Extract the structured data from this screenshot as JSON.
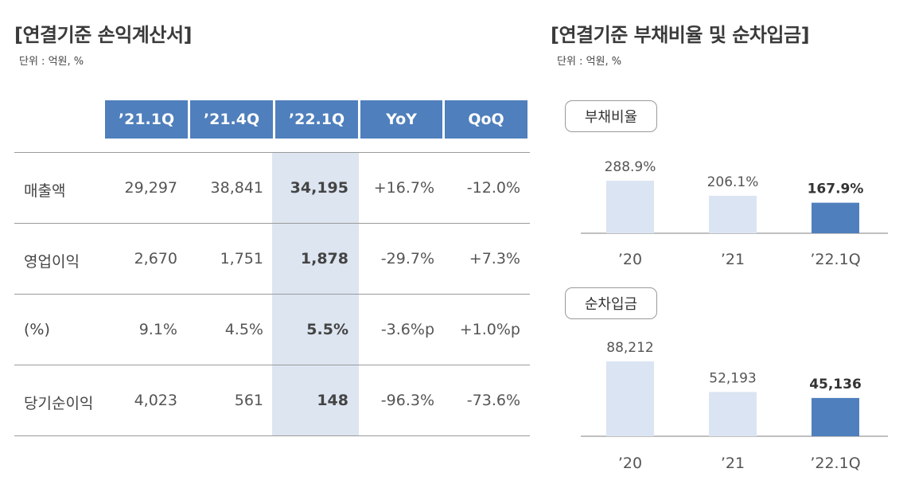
{
  "left": {
    "title": "[연결기준 손익계산서]",
    "unit": "단위 : 억원, %",
    "columns": [
      "’21.1Q",
      "’21.4Q",
      "’22.1Q",
      "YoY",
      "QoQ"
    ],
    "rows": [
      {
        "label": "매출액",
        "values": [
          "29,297",
          "38,841",
          "34,195",
          "+16.7%",
          "-12.0%"
        ]
      },
      {
        "label": "영업이익",
        "values": [
          "2,670",
          "1,751",
          "1,878",
          "-29.7%",
          "+7.3%"
        ]
      },
      {
        "label": "(%)",
        "values": [
          "9.1%",
          "4.5%",
          "5.5%",
          "-3.6%p",
          "+1.0%p"
        ]
      },
      {
        "label": "당기순이익",
        "values": [
          "4,023",
          "561",
          "148",
          "-96.3%",
          "-73.6%"
        ]
      }
    ]
  },
  "right": {
    "title": "[연결기준 부채비율 및 순차입금]",
    "unit": "단위 : 억원, %"
  },
  "chart_data": [
    {
      "type": "bar",
      "title": "부채비율",
      "categories": [
        "’20",
        "’21",
        "’22.1Q"
      ],
      "values": [
        288.9,
        206.1,
        167.9
      ],
      "value_labels": [
        "288.9%",
        "206.1%",
        "167.9%"
      ],
      "highlight_index": 2,
      "colors": {
        "normal": "#dbe4f2",
        "highlight": "#4f7fbc"
      }
    },
    {
      "type": "bar",
      "title": "순차입금",
      "categories": [
        "’20",
        "’21",
        "’22.1Q"
      ],
      "values": [
        88212,
        52193,
        45136
      ],
      "value_labels": [
        "88,212",
        "52,193",
        "45,136"
      ],
      "highlight_index": 2,
      "colors": {
        "normal": "#dbe4f2",
        "highlight": "#4f7fbc"
      }
    }
  ]
}
